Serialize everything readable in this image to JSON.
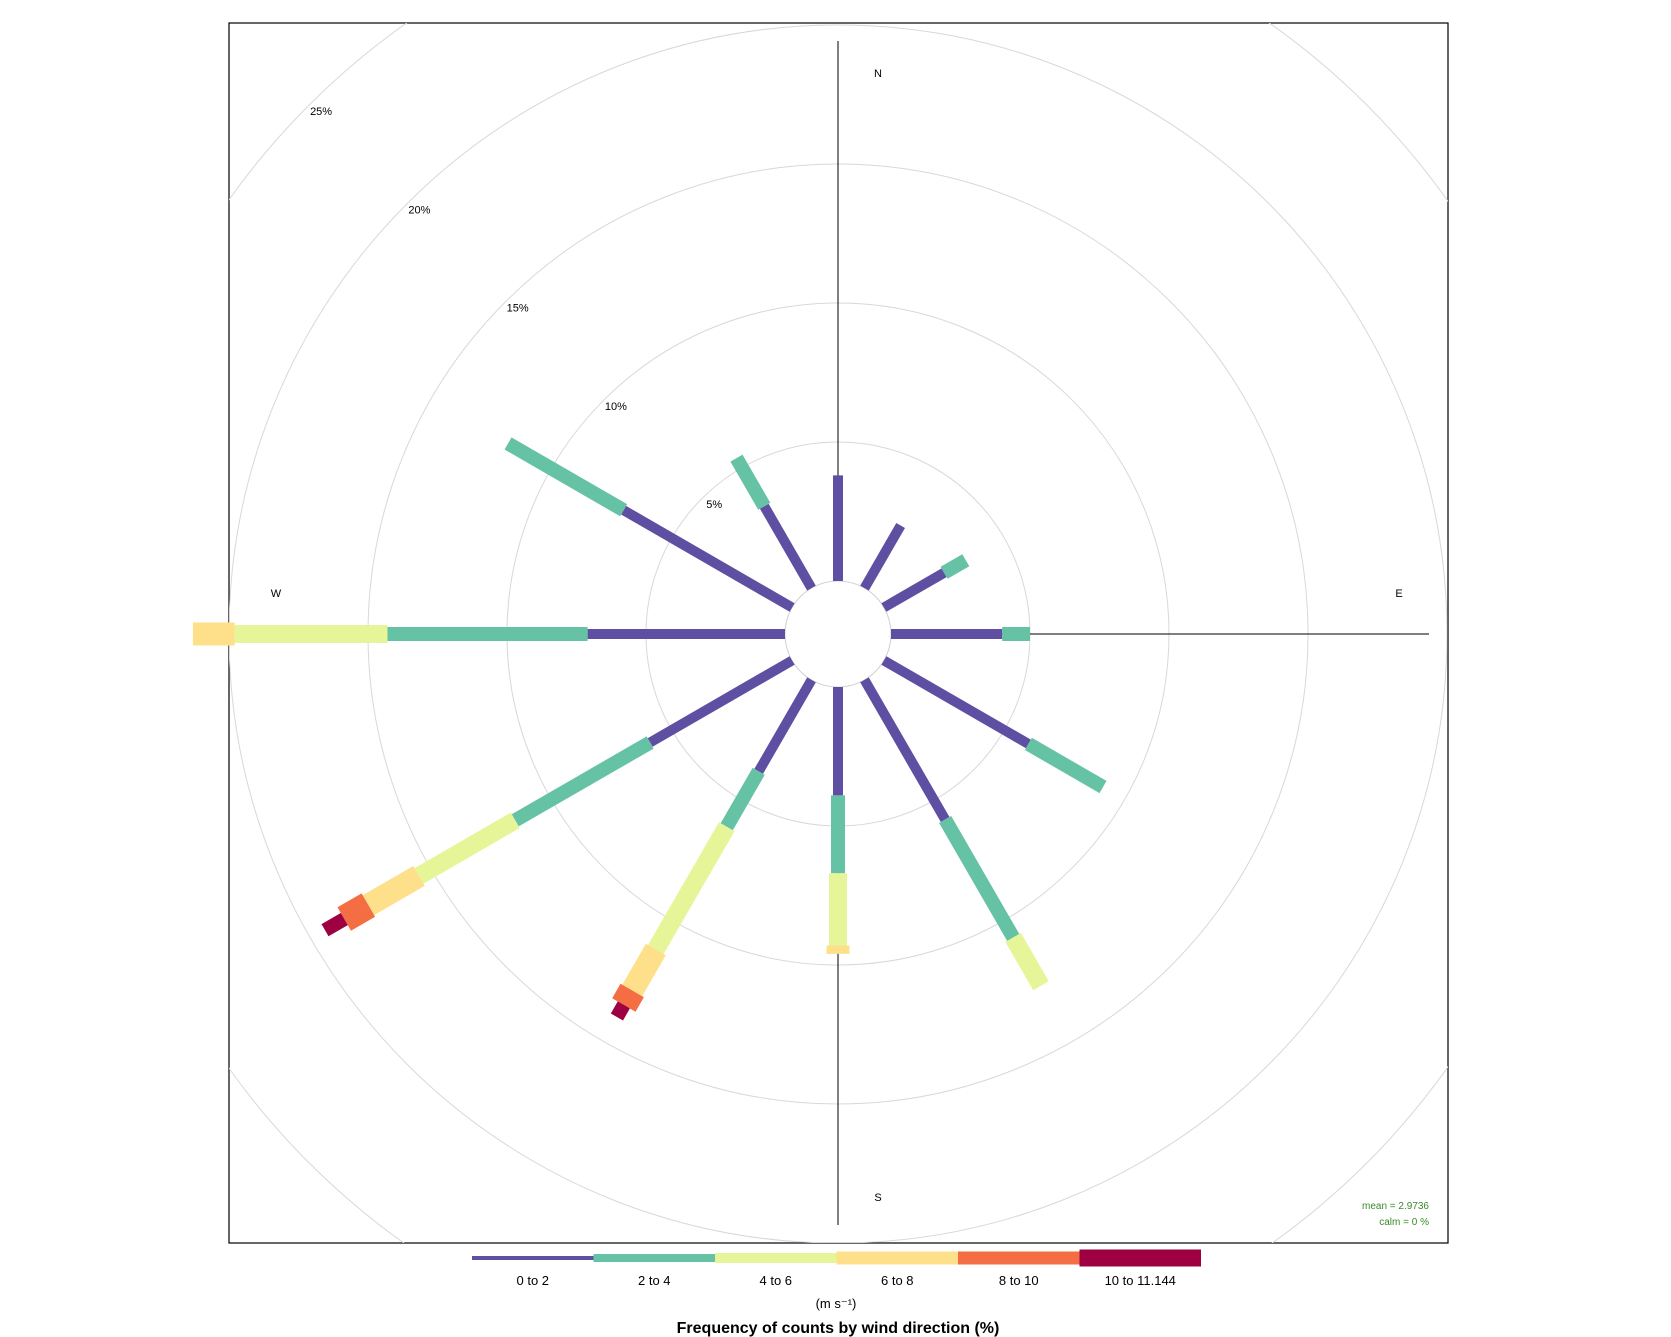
{
  "chart_data": {
    "type": "windrose",
    "title": "Frequency of counts by wind direction (%)",
    "units_label": "(m s⁻¹)",
    "compass": [
      "N",
      "E",
      "S",
      "W"
    ],
    "rings": [
      5,
      10,
      15,
      20,
      25
    ],
    "ring_labels": [
      "5%",
      "10%",
      "15%",
      "20%",
      "25%"
    ],
    "calm_percent": 0,
    "speed_bins": [
      {
        "label": "0 to 2",
        "color": "#5E4FA2"
      },
      {
        "label": "2 to 4",
        "color": "#66C2A5"
      },
      {
        "label": "4 to 6",
        "color": "#E6F598"
      },
      {
        "label": "6 to 8",
        "color": "#FEE08B"
      },
      {
        "label": "8 to 10",
        "color": "#F46D43"
      },
      {
        "label": "10 to 11.144",
        "color": "#9E0142"
      }
    ],
    "directions": [
      {
        "angle": 0,
        "cumulative": [
          3.8
        ]
      },
      {
        "angle": 30,
        "cumulative": [
          2.6
        ]
      },
      {
        "angle": 60,
        "cumulative": [
          2.5,
          3.4
        ]
      },
      {
        "angle": 90,
        "cumulative": [
          4.0,
          5.0
        ]
      },
      {
        "angle": 120,
        "cumulative": [
          6.0,
          9.1
        ]
      },
      {
        "angle": 150,
        "cumulative": [
          5.8,
          10.7,
          12.7
        ]
      },
      {
        "angle": 180,
        "cumulative": [
          3.9,
          6.7,
          9.3,
          9.6
        ]
      },
      {
        "angle": 210,
        "cumulative": [
          3.8,
          6.1,
          11.2,
          12.9,
          13.5,
          14.0
        ]
      },
      {
        "angle": 240,
        "cumulative": [
          5.9,
          11.5,
          15.5,
          17.6,
          18.6,
          19.4
        ]
      },
      {
        "angle": 270,
        "cumulative": [
          7.1,
          14.3,
          19.8,
          21.3
        ]
      },
      {
        "angle": 300,
        "cumulative": [
          7.0,
          11.8
        ]
      },
      {
        "angle": 330,
        "cumulative": [
          3.4,
          5.4
        ]
      }
    ],
    "stats": {
      "mean_label": "mean  =  2.9736",
      "calm_label": "calm =  0 %"
    }
  }
}
